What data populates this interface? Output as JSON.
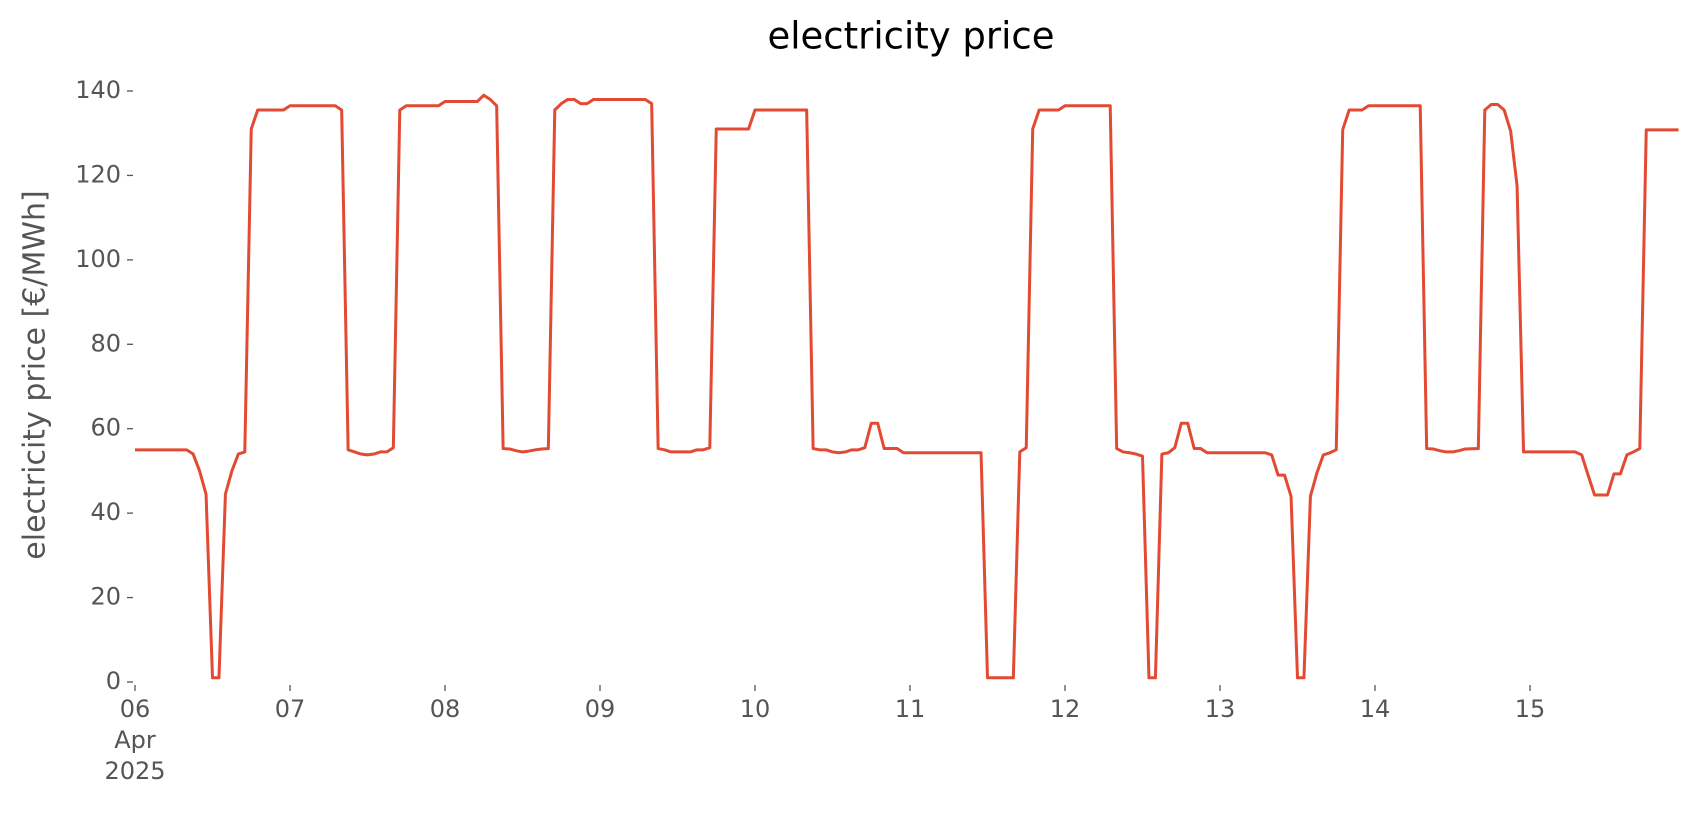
{
  "chart_data": {
    "type": "line",
    "title": "electricity price",
    "y_label": "electricity price [€/MWh]",
    "xlim": [
      "2025-04-06 00:00",
      "2025-04-16 00:00"
    ],
    "xticks": [
      {
        "value": "2025-04-06 00:00",
        "label": "06\nApr\n2025"
      },
      {
        "value": "2025-04-07 00:00",
        "label": "07"
      },
      {
        "value": "2025-04-08 00:00",
        "label": "08"
      },
      {
        "value": "2025-04-09 00:00",
        "label": "09"
      },
      {
        "value": "2025-04-10 00:00",
        "label": "10"
      },
      {
        "value": "2025-04-11 00:00",
        "label": "11"
      },
      {
        "value": "2025-04-12 00:00",
        "label": "12"
      },
      {
        "value": "2025-04-13 00:00",
        "label": "13"
      },
      {
        "value": "2025-04-14 00:00",
        "label": "14"
      },
      {
        "value": "2025-04-15 00:00",
        "label": "15"
      }
    ],
    "ylim": [
      0,
      140
    ],
    "yticks": [
      0,
      20,
      40,
      60,
      80,
      100,
      120,
      140
    ],
    "grid": false,
    "x": [
      "2025-04-06 00:00",
      "2025-04-06 08:00",
      "2025-04-06 09:00",
      "2025-04-06 10:00",
      "2025-04-06 11:00",
      "2025-04-06 12:00",
      "2025-04-06 13:00",
      "2025-04-06 14:00",
      "2025-04-06 15:00",
      "2025-04-06 16:00",
      "2025-04-06 17:00",
      "2025-04-06 18:00",
      "2025-04-06 19:00",
      "2025-04-06 23:00",
      "2025-04-07 00:00",
      "2025-04-07 07:00",
      "2025-04-07 08:00",
      "2025-04-07 09:00",
      "2025-04-07 10:00",
      "2025-04-07 11:00",
      "2025-04-07 12:00",
      "2025-04-07 13:00",
      "2025-04-07 14:00",
      "2025-04-07 15:00",
      "2025-04-07 16:00",
      "2025-04-07 17:00",
      "2025-04-07 18:00",
      "2025-04-07 23:00",
      "2025-04-08 00:00",
      "2025-04-08 05:00",
      "2025-04-08 06:00",
      "2025-04-08 07:00",
      "2025-04-08 08:00",
      "2025-04-08 09:00",
      "2025-04-08 10:00",
      "2025-04-08 11:00",
      "2025-04-08 12:00",
      "2025-04-08 13:00",
      "2025-04-08 14:00",
      "2025-04-08 15:00",
      "2025-04-08 16:00",
      "2025-04-08 17:00",
      "2025-04-08 18:00",
      "2025-04-08 19:00",
      "2025-04-08 20:00",
      "2025-04-08 21:00",
      "2025-04-08 22:00",
      "2025-04-08 23:00",
      "2025-04-09 07:00",
      "2025-04-09 08:00",
      "2025-04-09 09:00",
      "2025-04-09 10:00",
      "2025-04-09 11:00",
      "2025-04-09 14:00",
      "2025-04-09 15:00",
      "2025-04-09 16:00",
      "2025-04-09 17:00",
      "2025-04-09 18:00",
      "2025-04-09 23:00",
      "2025-04-10 00:00",
      "2025-04-10 08:00",
      "2025-04-10 09:00",
      "2025-04-10 10:00",
      "2025-04-10 11:00",
      "2025-04-10 12:00",
      "2025-04-10 13:00",
      "2025-04-10 14:00",
      "2025-04-10 15:00",
      "2025-04-10 16:00",
      "2025-04-10 17:00",
      "2025-04-10 18:00",
      "2025-04-10 19:00",
      "2025-04-10 20:00",
      "2025-04-10 22:00",
      "2025-04-10 23:00",
      "2025-04-11 11:00",
      "2025-04-11 12:00",
      "2025-04-11 16:00",
      "2025-04-11 17:00",
      "2025-04-11 18:00",
      "2025-04-11 19:00",
      "2025-04-11 20:00",
      "2025-04-11 23:00",
      "2025-04-12 00:00",
      "2025-04-12 07:00",
      "2025-04-12 08:00",
      "2025-04-12 09:00",
      "2025-04-12 10:00",
      "2025-04-12 11:00",
      "2025-04-12 12:00",
      "2025-04-12 13:00",
      "2025-04-12 14:00",
      "2025-04-12 15:00",
      "2025-04-12 16:00",
      "2025-04-12 17:00",
      "2025-04-12 18:00",
      "2025-04-12 19:00",
      "2025-04-12 20:00",
      "2025-04-12 21:00",
      "2025-04-12 22:00",
      "2025-04-13 07:00",
      "2025-04-13 08:00",
      "2025-04-13 09:00",
      "2025-04-13 10:00",
      "2025-04-13 11:00",
      "2025-04-13 12:00",
      "2025-04-13 13:00",
      "2025-04-13 14:00",
      "2025-04-13 15:00",
      "2025-04-13 16:00",
      "2025-04-13 17:00",
      "2025-04-13 18:00",
      "2025-04-13 19:00",
      "2025-04-13 20:00",
      "2025-04-13 22:00",
      "2025-04-13 23:00",
      "2025-04-14 07:00",
      "2025-04-14 08:00",
      "2025-04-14 09:00",
      "2025-04-14 10:00",
      "2025-04-14 11:00",
      "2025-04-14 12:00",
      "2025-04-14 13:00",
      "2025-04-14 14:00",
      "2025-04-14 16:00",
      "2025-04-14 17:00",
      "2025-04-14 18:00",
      "2025-04-14 19:00",
      "2025-04-14 20:00",
      "2025-04-14 21:00",
      "2025-04-14 22:00",
      "2025-04-14 23:00",
      "2025-04-15 07:00",
      "2025-04-15 08:00",
      "2025-04-15 09:00",
      "2025-04-15 10:00",
      "2025-04-15 12:00",
      "2025-04-15 13:00",
      "2025-04-15 14:00",
      "2025-04-15 15:00",
      "2025-04-15 16:00",
      "2025-04-15 17:00",
      "2025-04-15 18:00",
      "2025-04-15 23:00"
    ],
    "series": [
      {
        "name": "electricity price",
        "color": "#e24a33",
        "values": [
          55,
          55,
          54,
          50,
          44.5,
          1,
          1,
          44.5,
          50,
          54,
          54.5,
          131,
          135.5,
          135.5,
          136.5,
          136.5,
          135.5,
          55,
          54.5,
          54,
          53.8,
          54,
          54.5,
          54.5,
          55.5,
          135.5,
          136.5,
          136.5,
          137.5,
          137.5,
          139,
          138,
          136.5,
          55.3,
          55.2,
          54.8,
          54.5,
          54.7,
          55,
          55.2,
          55.3,
          135.5,
          137,
          138,
          138,
          137,
          137,
          138,
          138,
          137,
          55.3,
          55,
          54.5,
          54.5,
          55,
          55,
          55.5,
          131,
          131,
          135.5,
          135.5,
          55.3,
          55,
          55,
          54.5,
          54.3,
          54.5,
          55,
          55,
          55.5,
          61.3,
          61.3,
          55.3,
          55.3,
          54.3,
          54.3,
          1,
          1,
          54.5,
          55.5,
          131,
          135.5,
          135.5,
          136.5,
          136.5,
          55.3,
          54.5,
          54.3,
          54,
          53.5,
          1,
          1,
          54,
          54.3,
          55.5,
          61.3,
          61.3,
          55.3,
          55.3,
          54.3,
          54.3,
          53.8,
          49,
          49,
          44,
          1,
          1,
          44,
          49.5,
          53.8,
          54.3,
          55,
          130.8,
          135.5,
          135.5,
          136.5,
          136.5,
          55.3,
          55.2,
          54.8,
          54.5,
          54.5,
          54.8,
          55.2,
          55.3,
          135.5,
          136.8,
          136.8,
          135.5,
          130.5,
          117.5,
          54.5,
          54.5,
          53.8,
          49,
          44.3,
          44.3,
          49.3,
          49.3,
          53.8,
          54.5,
          55.3,
          130.8,
          130.8
        ]
      }
    ]
  }
}
